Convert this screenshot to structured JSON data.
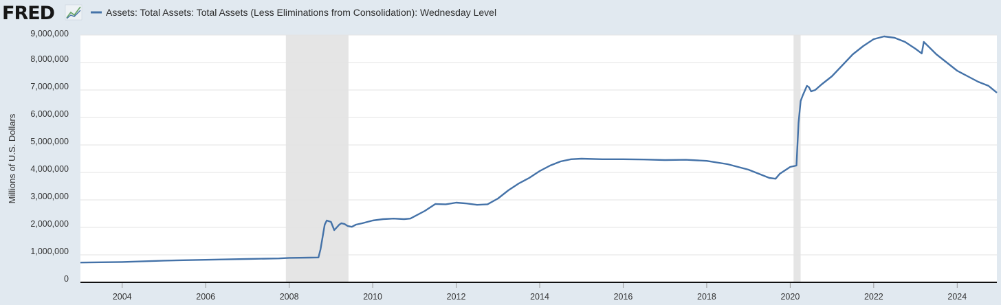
{
  "logo": {
    "text": "FRED",
    "icon": "fred-chart-icon"
  },
  "chart_data": {
    "type": "line",
    "title": "",
    "xlabel": "",
    "ylabel": "Millions of U.S. Dollars",
    "xlim": [
      2003.0,
      2024.95
    ],
    "ylim": [
      0,
      9000000
    ],
    "yticks": [
      0,
      1000000,
      2000000,
      3000000,
      4000000,
      5000000,
      6000000,
      7000000,
      8000000,
      9000000
    ],
    "ytick_labels": [
      "0",
      "1,000,000",
      "2,000,000",
      "3,000,000",
      "4,000,000",
      "5,000,000",
      "6,000,000",
      "7,000,000",
      "8,000,000",
      "9,000,000"
    ],
    "xticks": [
      2004,
      2006,
      2008,
      2010,
      2012,
      2014,
      2016,
      2018,
      2020,
      2022,
      2024
    ],
    "xtick_labels": [
      "2004",
      "2006",
      "2008",
      "2010",
      "2012",
      "2014",
      "2016",
      "2018",
      "2020",
      "2022",
      "2024"
    ],
    "grid": "horizontal",
    "legend": "top-left",
    "recessions": [
      [
        2007.92,
        2009.42
      ],
      [
        2020.08,
        2020.25
      ]
    ],
    "colors": {
      "line": "#4472a8",
      "recession": "#e5e5e5",
      "plot_bg": "#ffffff",
      "page_bg": "#e1e9f0"
    },
    "series": [
      {
        "name": "Assets: Total Assets: Total Assets (Less Eliminations from Consolidation): Wednesday Level",
        "x": [
          2003.0,
          2004.0,
          2005.0,
          2006.0,
          2007.0,
          2007.75,
          2008.0,
          2008.5,
          2008.7,
          2008.75,
          2008.85,
          2008.9,
          2009.0,
          2009.08,
          2009.2,
          2009.25,
          2009.33,
          2009.4,
          2009.5,
          2009.6,
          2009.75,
          2010.0,
          2010.25,
          2010.5,
          2010.75,
          2010.9,
          2011.25,
          2011.5,
          2011.75,
          2012.0,
          2012.25,
          2012.5,
          2012.75,
          2013.0,
          2013.25,
          2013.5,
          2013.75,
          2014.0,
          2014.25,
          2014.5,
          2014.75,
          2015.0,
          2015.5,
          2016.0,
          2016.5,
          2017.0,
          2017.5,
          2018.0,
          2018.5,
          2019.0,
          2019.5,
          2019.65,
          2019.75,
          2019.9,
          2020.0,
          2020.15,
          2020.2,
          2020.25,
          2020.3,
          2020.4,
          2020.45,
          2020.5,
          2020.6,
          2020.75,
          2021.0,
          2021.25,
          2021.5,
          2021.75,
          2022.0,
          2022.25,
          2022.5,
          2022.75,
          2023.0,
          2023.15,
          2023.2,
          2023.3,
          2023.5,
          2023.75,
          2024.0,
          2024.25,
          2024.5,
          2024.75,
          2024.95
        ],
        "values": [
          720000,
          740000,
          790000,
          820000,
          850000,
          870000,
          890000,
          900000,
          905000,
          1200000,
          2100000,
          2250000,
          2200000,
          1900000,
          2100000,
          2150000,
          2120000,
          2050000,
          2020000,
          2100000,
          2150000,
          2250000,
          2300000,
          2320000,
          2300000,
          2320000,
          2600000,
          2850000,
          2840000,
          2900000,
          2870000,
          2820000,
          2840000,
          3050000,
          3350000,
          3600000,
          3800000,
          4050000,
          4250000,
          4400000,
          4480000,
          4500000,
          4480000,
          4480000,
          4470000,
          4450000,
          4460000,
          4420000,
          4300000,
          4100000,
          3800000,
          3770000,
          3950000,
          4100000,
          4200000,
          4250000,
          5800000,
          6600000,
          6800000,
          7150000,
          7100000,
          6950000,
          7000000,
          7200000,
          7500000,
          7900000,
          8300000,
          8600000,
          8850000,
          8950000,
          8900000,
          8750000,
          8500000,
          8330000,
          8750000,
          8600000,
          8300000,
          8000000,
          7700000,
          7500000,
          7300000,
          7150000,
          6900000
        ]
      }
    ]
  }
}
